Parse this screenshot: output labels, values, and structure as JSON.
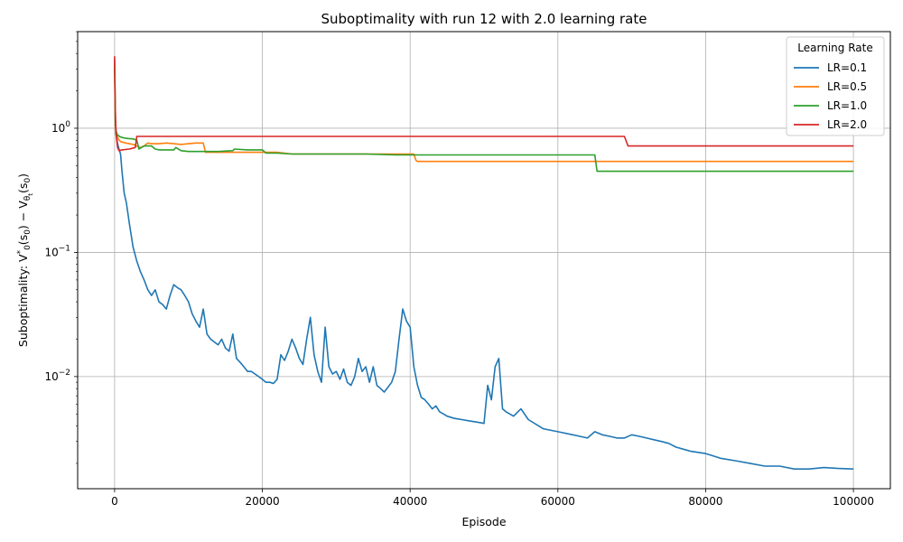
{
  "chart_data": {
    "type": "line",
    "title": "Suboptimality with run 12 with 2.0 learning rate",
    "xlabel": "Episode",
    "ylabel_parts": [
      "Suboptimality: V",
      "*",
      "0",
      "(s",
      "0",
      ") − V",
      "θ",
      "t",
      "(s",
      "0",
      ")"
    ],
    "xlim": [
      -5000,
      105000
    ],
    "ylim": [
      0.00125,
      6.0
    ],
    "yscale": "log",
    "grid": true,
    "legend": {
      "title": "Learning Rate",
      "placement": "top-right"
    },
    "x_ticks": [
      {
        "value": 0,
        "label": "0"
      },
      {
        "value": 20000,
        "label": "20000"
      },
      {
        "value": 40000,
        "label": "40000"
      },
      {
        "value": 60000,
        "label": "60000"
      },
      {
        "value": 80000,
        "label": "80000"
      },
      {
        "value": 100000,
        "label": "100000"
      }
    ],
    "y_ticks": [
      {
        "value": 0.01,
        "base": "10",
        "exp": "−2"
      },
      {
        "value": 0.1,
        "base": "10",
        "exp": "−1"
      },
      {
        "value": 1,
        "base": "10",
        "exp": "0"
      }
    ],
    "series": [
      {
        "name": "LR=0.1",
        "color": "#1f77b4",
        "x": [
          0,
          100,
          200,
          400,
          600,
          800,
          1000,
          1300,
          1600,
          2000,
          2500,
          3000,
          3500,
          4000,
          4500,
          5000,
          5500,
          6000,
          6500,
          7000,
          7500,
          8000,
          8500,
          9000,
          9500,
          10000,
          10500,
          11000,
          11500,
          12000,
          12500,
          13000,
          13500,
          14000,
          14500,
          15000,
          15500,
          16000,
          16500,
          17000,
          17500,
          18000,
          18500,
          19000,
          19500,
          20000,
          20500,
          21000,
          21500,
          22000,
          22500,
          23000,
          23500,
          24000,
          24500,
          25000,
          25500,
          26000,
          26500,
          27000,
          27500,
          28000,
          28500,
          29000,
          29500,
          30000,
          30500,
          31000,
          31500,
          32000,
          32500,
          33000,
          33500,
          34000,
          34500,
          35000,
          35500,
          36000,
          36500,
          37000,
          37500,
          38000,
          38500,
          39000,
          39500,
          40000,
          40500,
          41000,
          41500,
          42000,
          42500,
          43000,
          43500,
          44000,
          44500,
          45000,
          46000,
          47000,
          48000,
          49000,
          50000,
          50500,
          51000,
          51500,
          52000,
          52500,
          53000,
          54000,
          55000,
          56000,
          58000,
          60000,
          62000,
          64000,
          65000,
          66000,
          67000,
          68000,
          69000,
          70000,
          71000,
          72000,
          73000,
          74000,
          75000,
          76000,
          78000,
          80000,
          81000,
          82000,
          84000,
          86000,
          88000,
          90000,
          92000,
          94000,
          96000,
          98000,
          100000
        ],
        "y": [
          3.6,
          1.2,
          0.9,
          0.75,
          0.68,
          0.62,
          0.45,
          0.3,
          0.25,
          0.17,
          0.11,
          0.085,
          0.07,
          0.06,
          0.05,
          0.045,
          0.05,
          0.04,
          0.038,
          0.035,
          0.045,
          0.055,
          0.052,
          0.05,
          0.045,
          0.04,
          0.032,
          0.028,
          0.025,
          0.035,
          0.022,
          0.02,
          0.019,
          0.018,
          0.02,
          0.017,
          0.016,
          0.022,
          0.014,
          0.013,
          0.012,
          0.011,
          0.011,
          0.0105,
          0.01,
          0.0095,
          0.009,
          0.009,
          0.0088,
          0.0095,
          0.015,
          0.0135,
          0.016,
          0.02,
          0.017,
          0.014,
          0.0125,
          0.02,
          0.03,
          0.015,
          0.011,
          0.009,
          0.025,
          0.012,
          0.0105,
          0.011,
          0.0095,
          0.0115,
          0.009,
          0.0085,
          0.01,
          0.014,
          0.011,
          0.012,
          0.009,
          0.012,
          0.0085,
          0.008,
          0.0075,
          0.0082,
          0.009,
          0.011,
          0.02,
          0.035,
          0.028,
          0.025,
          0.012,
          0.0085,
          0.0068,
          0.0065,
          0.006,
          0.0055,
          0.0058,
          0.0052,
          0.005,
          0.0048,
          0.0046,
          0.0045,
          0.0044,
          0.0043,
          0.0042,
          0.0085,
          0.0065,
          0.012,
          0.014,
          0.0055,
          0.0052,
          0.0048,
          0.0055,
          0.0045,
          0.0038,
          0.0036,
          0.0034,
          0.0032,
          0.0036,
          0.0034,
          0.0033,
          0.0032,
          0.0032,
          0.0034,
          0.0033,
          0.0032,
          0.0031,
          0.003,
          0.0029,
          0.0027,
          0.0025,
          0.0024,
          0.0023,
          0.0022,
          0.0021,
          0.002,
          0.0019,
          0.0019,
          0.0018,
          0.0018,
          0.00185,
          0.00182,
          0.0018
        ]
      },
      {
        "name": "LR=0.5",
        "color": "#ff7f0e",
        "x": [
          0,
          100,
          300,
          500,
          800,
          1500,
          2500,
          3000,
          3500,
          4000,
          4500,
          5000,
          6000,
          7000,
          8000,
          9000,
          10000,
          11000,
          12000,
          12300,
          14000,
          16000,
          18000,
          20000,
          22000,
          24000,
          26000,
          30000,
          34000,
          38000,
          40000,
          40500,
          40800,
          41000,
          45000,
          50000,
          55000,
          60000,
          65000,
          70000,
          75000,
          80000,
          85000,
          90000,
          95000,
          100000
        ],
        "y": [
          3.4,
          1.0,
          0.88,
          0.82,
          0.78,
          0.76,
          0.74,
          0.72,
          0.7,
          0.72,
          0.76,
          0.75,
          0.75,
          0.76,
          0.75,
          0.74,
          0.75,
          0.76,
          0.76,
          0.64,
          0.64,
          0.64,
          0.64,
          0.64,
          0.64,
          0.62,
          0.62,
          0.62,
          0.62,
          0.62,
          0.62,
          0.62,
          0.55,
          0.54,
          0.54,
          0.54,
          0.54,
          0.54,
          0.54,
          0.54,
          0.54,
          0.54,
          0.54,
          0.54,
          0.54,
          0.54
        ]
      },
      {
        "name": "LR=1.0",
        "color": "#2ca02c",
        "x": [
          0,
          100,
          200,
          400,
          800,
          1500,
          2500,
          3000,
          3300,
          4000,
          5000,
          5500,
          6000,
          8000,
          8300,
          9000,
          10000,
          12000,
          14000,
          16000,
          16200,
          18000,
          20000,
          20500,
          22000,
          24000,
          26000,
          30000,
          34000,
          38000,
          42000,
          46000,
          50000,
          55000,
          60000,
          65000,
          65300,
          66000,
          70000,
          75000,
          80000,
          85000,
          90000,
          95000,
          100000
        ],
        "y": [
          3.2,
          1.1,
          0.95,
          0.88,
          0.85,
          0.83,
          0.82,
          0.8,
          0.68,
          0.72,
          0.72,
          0.68,
          0.67,
          0.67,
          0.7,
          0.66,
          0.65,
          0.65,
          0.65,
          0.66,
          0.68,
          0.67,
          0.67,
          0.63,
          0.63,
          0.62,
          0.62,
          0.62,
          0.62,
          0.61,
          0.61,
          0.61,
          0.61,
          0.61,
          0.61,
          0.61,
          0.45,
          0.45,
          0.45,
          0.45,
          0.45,
          0.45,
          0.45,
          0.45,
          0.45
        ]
      },
      {
        "name": "LR=2.0",
        "color": "#d62728",
        "x": [
          0,
          80,
          200,
          400,
          600,
          1000,
          2000,
          2800,
          3000,
          10000,
          20000,
          30000,
          35000,
          40000,
          50000,
          60000,
          65000,
          69000,
          69500,
          70000,
          80000,
          90000,
          100000
        ],
        "y": [
          3.8,
          1.5,
          0.9,
          0.7,
          0.66,
          0.67,
          0.68,
          0.7,
          0.86,
          0.86,
          0.86,
          0.86,
          0.86,
          0.86,
          0.86,
          0.86,
          0.86,
          0.86,
          0.72,
          0.72,
          0.72,
          0.72,
          0.72
        ]
      }
    ]
  }
}
